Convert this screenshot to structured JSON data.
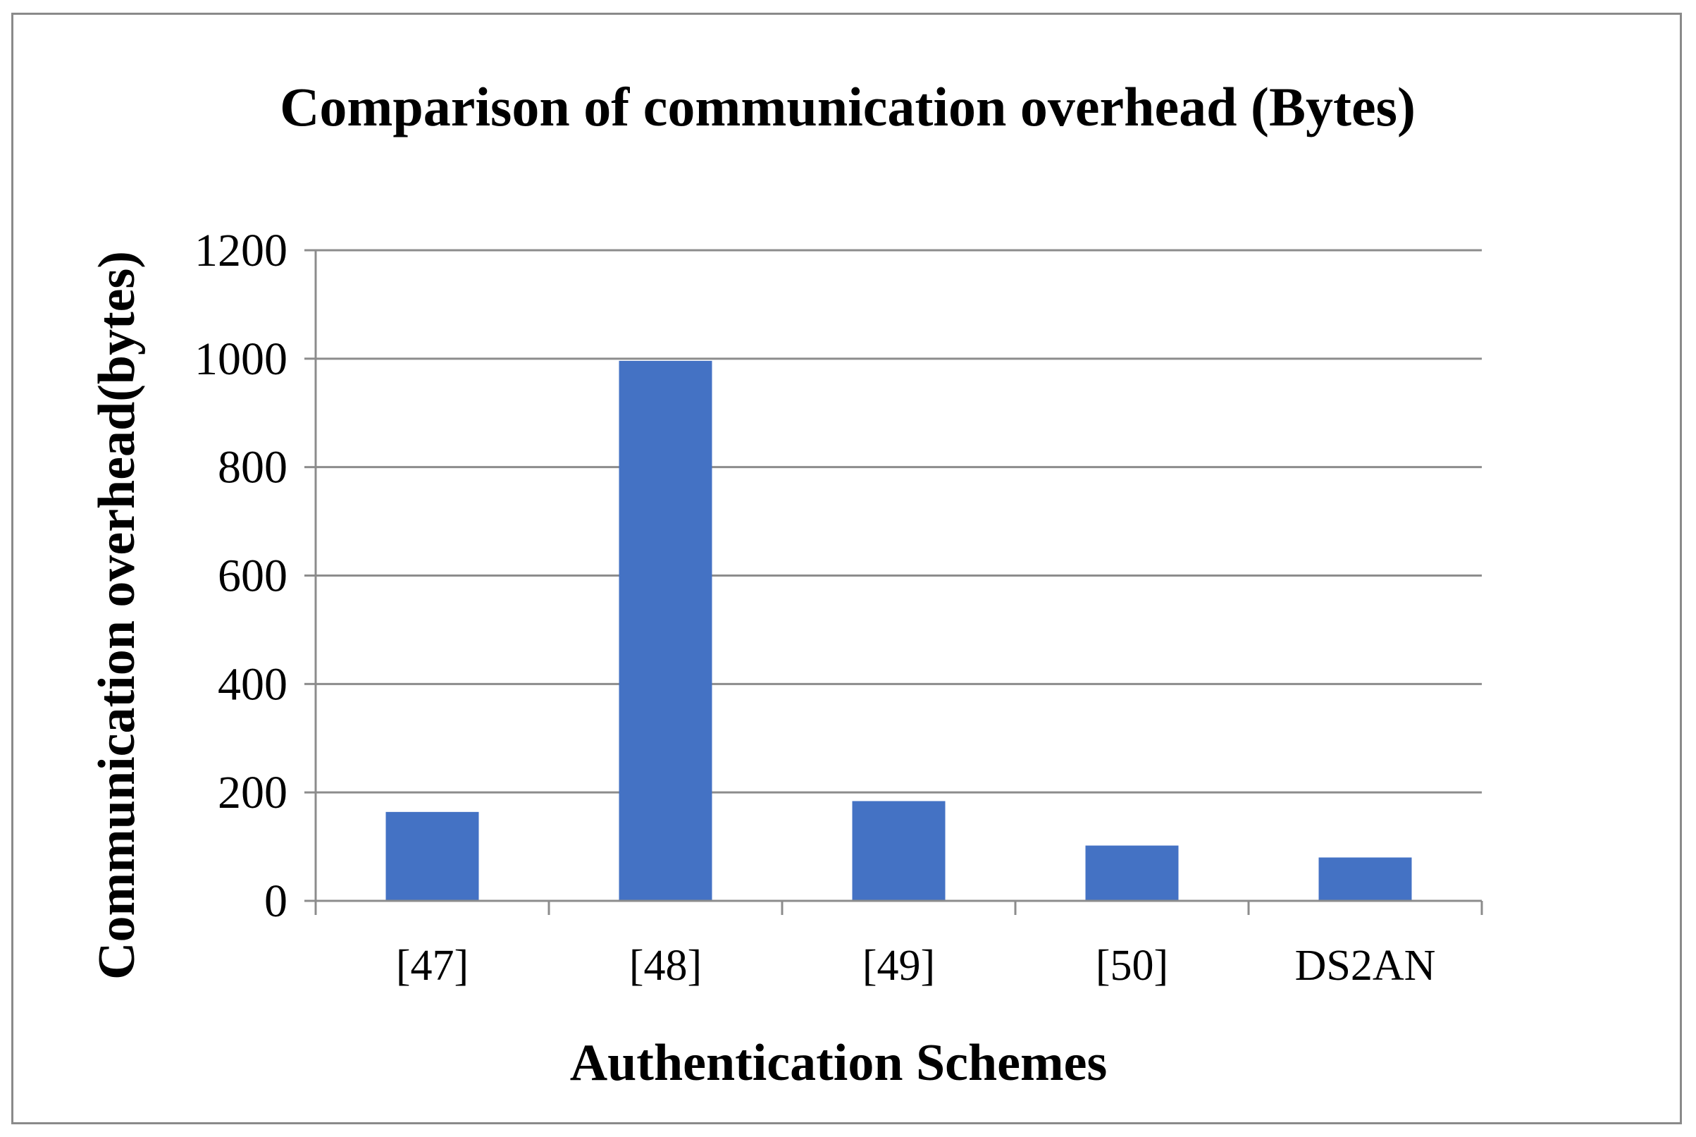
{
  "chart_data": {
    "type": "bar",
    "title": "Comparison of communication overhead (Bytes)",
    "xlabel": "Authentication Schemes",
    "ylabel": "Communication overhead(bytes)",
    "categories": [
      "[47]",
      "[48]",
      "[49]",
      "[50]",
      "DS2AN"
    ],
    "values": [
      164,
      996,
      184,
      102,
      80
    ],
    "ylim": [
      0,
      1200
    ],
    "yticks": [
      "0",
      "200",
      "400",
      "600",
      "800",
      "1000",
      "1200"
    ],
    "grid": true,
    "legend": "none",
    "colors": {
      "bar": "#4472C4",
      "grid": "#8c8c8c",
      "axis": "#8c8c8c",
      "frame": "#8a8a8a"
    }
  }
}
